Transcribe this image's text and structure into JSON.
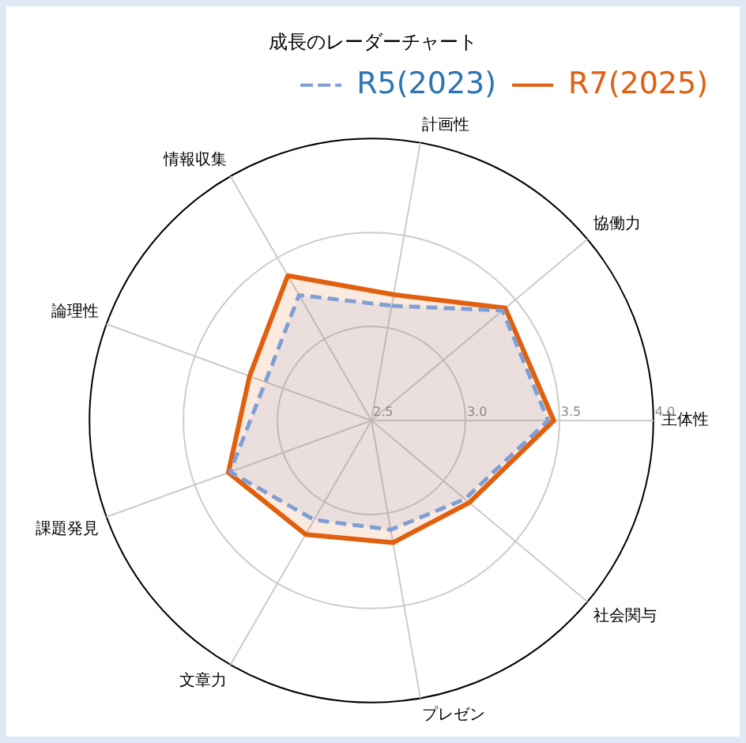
{
  "chart_data": {
    "type": "radar",
    "title": "成長のレーダーチャート",
    "categories": [
      "計画性",
      "協働力",
      "主体性",
      "社会関与",
      "プレゼン",
      "文章力",
      "課題発見",
      "論理性",
      "情報収集"
    ],
    "series": [
      {
        "name": "R5(2023)",
        "color": "#7f9fd4",
        "line_style": "dashed",
        "values": [
          3.12,
          3.41,
          3.44,
          3.15,
          3.09,
          3.11,
          3.3,
          3.1,
          3.27
        ]
      },
      {
        "name": "R7(2025)",
        "color": "#e0600f",
        "line_style": "solid",
        "values": [
          3.18,
          3.43,
          3.47,
          3.18,
          3.16,
          3.2,
          3.31,
          3.19,
          3.39
        ]
      }
    ],
    "ylim": [
      2.5,
      4.0
    ],
    "yticks": [
      {
        "value": 2.5,
        "label": "2.5"
      },
      {
        "value": 3,
        "label": "3.0"
      },
      {
        "value": 3.5,
        "label": "3.5"
      },
      {
        "value": 4,
        "label": "4.0"
      }
    ],
    "grid": true,
    "legend": "top right",
    "marker": "none"
  }
}
